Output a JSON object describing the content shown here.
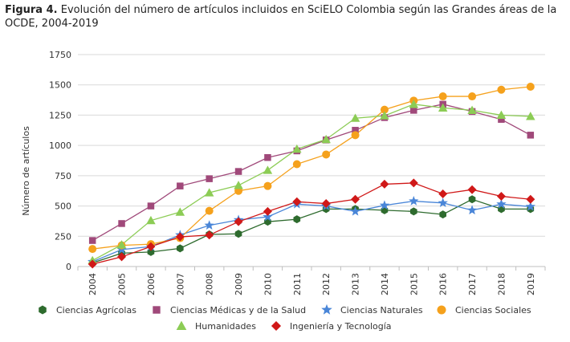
{
  "caption": {
    "label": "Figura 4.",
    "text": " Evolución del número de artículos incluidos en SciELO Colombia según las Grandes áreas de la OCDE, 2004-2019"
  },
  "chart_data": {
    "type": "line",
    "ylabel": "Número de artículos",
    "xlabel": "",
    "ylim": [
      0,
      1750
    ],
    "yticks": [
      0,
      250,
      500,
      750,
      1000,
      1250,
      1500,
      1750
    ],
    "grid": true,
    "legend_position": "bottom",
    "x": [
      "2004",
      "2005",
      "2006",
      "2007",
      "2008",
      "2009",
      "2010",
      "2011",
      "2012",
      "2013",
      "2014",
      "2015",
      "2016",
      "2017",
      "2018",
      "2019"
    ],
    "series": [
      {
        "name": "Ciencias Agrícolas",
        "color": "#2e6b2e",
        "marker": "hexagon",
        "values": [
          30,
          110,
          120,
          150,
          265,
          270,
          370,
          390,
          475,
          475,
          465,
          455,
          430,
          555,
          475,
          475
        ]
      },
      {
        "name": "Ciencias Médicas y de la Salud",
        "color": "#a0497a",
        "marker": "square",
        "values": [
          215,
          355,
          500,
          665,
          725,
          785,
          900,
          955,
          1045,
          1125,
          1230,
          1290,
          1340,
          1280,
          1215,
          1085
        ]
      },
      {
        "name": "Ciencias Naturales",
        "color": "#4a86d8",
        "marker": "star",
        "values": [
          40,
          140,
          165,
          260,
          340,
          385,
          410,
          515,
          500,
          455,
          505,
          540,
          525,
          465,
          515,
          495
        ]
      },
      {
        "name": "Ciencias Sociales",
        "color": "#f5a11c",
        "marker": "circle",
        "values": [
          145,
          175,
          185,
          235,
          460,
          625,
          665,
          845,
          925,
          1085,
          1295,
          1370,
          1405,
          1405,
          1460,
          1485
        ]
      },
      {
        "name": "Humanidades",
        "color": "#8ccc55",
        "marker": "triangle",
        "values": [
          50,
          180,
          380,
          450,
          610,
          670,
          795,
          970,
          1050,
          1225,
          1245,
          1340,
          1310,
          1290,
          1250,
          1240
        ]
      },
      {
        "name": "Ingeniería y Tecnología",
        "color": "#d01818",
        "marker": "diamond",
        "values": [
          20,
          80,
          165,
          245,
          260,
          370,
          455,
          535,
          520,
          555,
          680,
          690,
          600,
          635,
          580,
          555
        ]
      }
    ]
  }
}
